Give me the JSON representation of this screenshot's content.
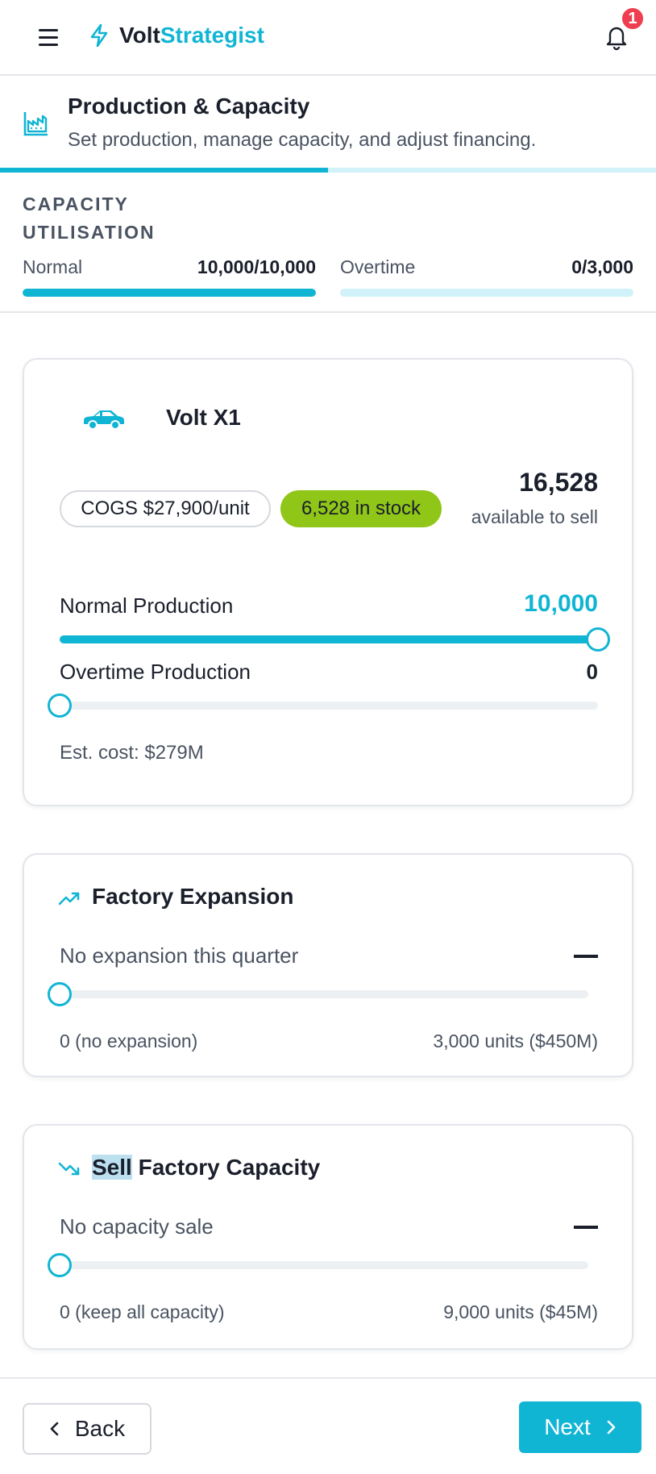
{
  "app": {
    "brand_part1": "Volt",
    "brand_part2": "Strategist",
    "notification_count": "1",
    "accent_color": "#11b5d4"
  },
  "step": {
    "title": "Production & Capacity",
    "subtitle": "Set production, manage capacity, and adjust financing.",
    "progress_fraction": 0.5
  },
  "capacity": {
    "title": "CAPACITY UTILISATION",
    "normal_label": "Normal",
    "normal_value": "10,000/10,000",
    "normal_fraction": 1.0,
    "overtime_label": "Overtime",
    "overtime_value": "0/3,000",
    "overtime_fraction": 0.0
  },
  "product": {
    "icon": "car-icon",
    "name": "Volt X1",
    "cogs": "COGS $27,900/unit",
    "stock": "6,528 in stock",
    "available_number": "16,528",
    "available_label": "available to sell",
    "normal_label": "Normal Production",
    "normal_value": "10,000",
    "normal_fraction": 1.0,
    "overtime_label": "Overtime Production",
    "overtime_value": "0",
    "overtime_fraction": 0.0,
    "est_cost": "Est. cost: $279M"
  },
  "expansion": {
    "icon": "trending-up-icon",
    "title": "Factory Expansion",
    "status": "No expansion this quarter",
    "slider_fraction": 0.0,
    "min_label": "0 (no expansion)",
    "max_label": "3,000 units ($450M)"
  },
  "sell": {
    "icon": "trending-down-icon",
    "title_highlight": "Sell",
    "title_rest": " Factory Capacity",
    "status": "No capacity sale",
    "slider_fraction": 0.0,
    "min_label": "0 (keep all capacity)",
    "max_label": "9,000 units ($45M)"
  },
  "footer": {
    "back_label": "Back",
    "next_label": "Next"
  }
}
